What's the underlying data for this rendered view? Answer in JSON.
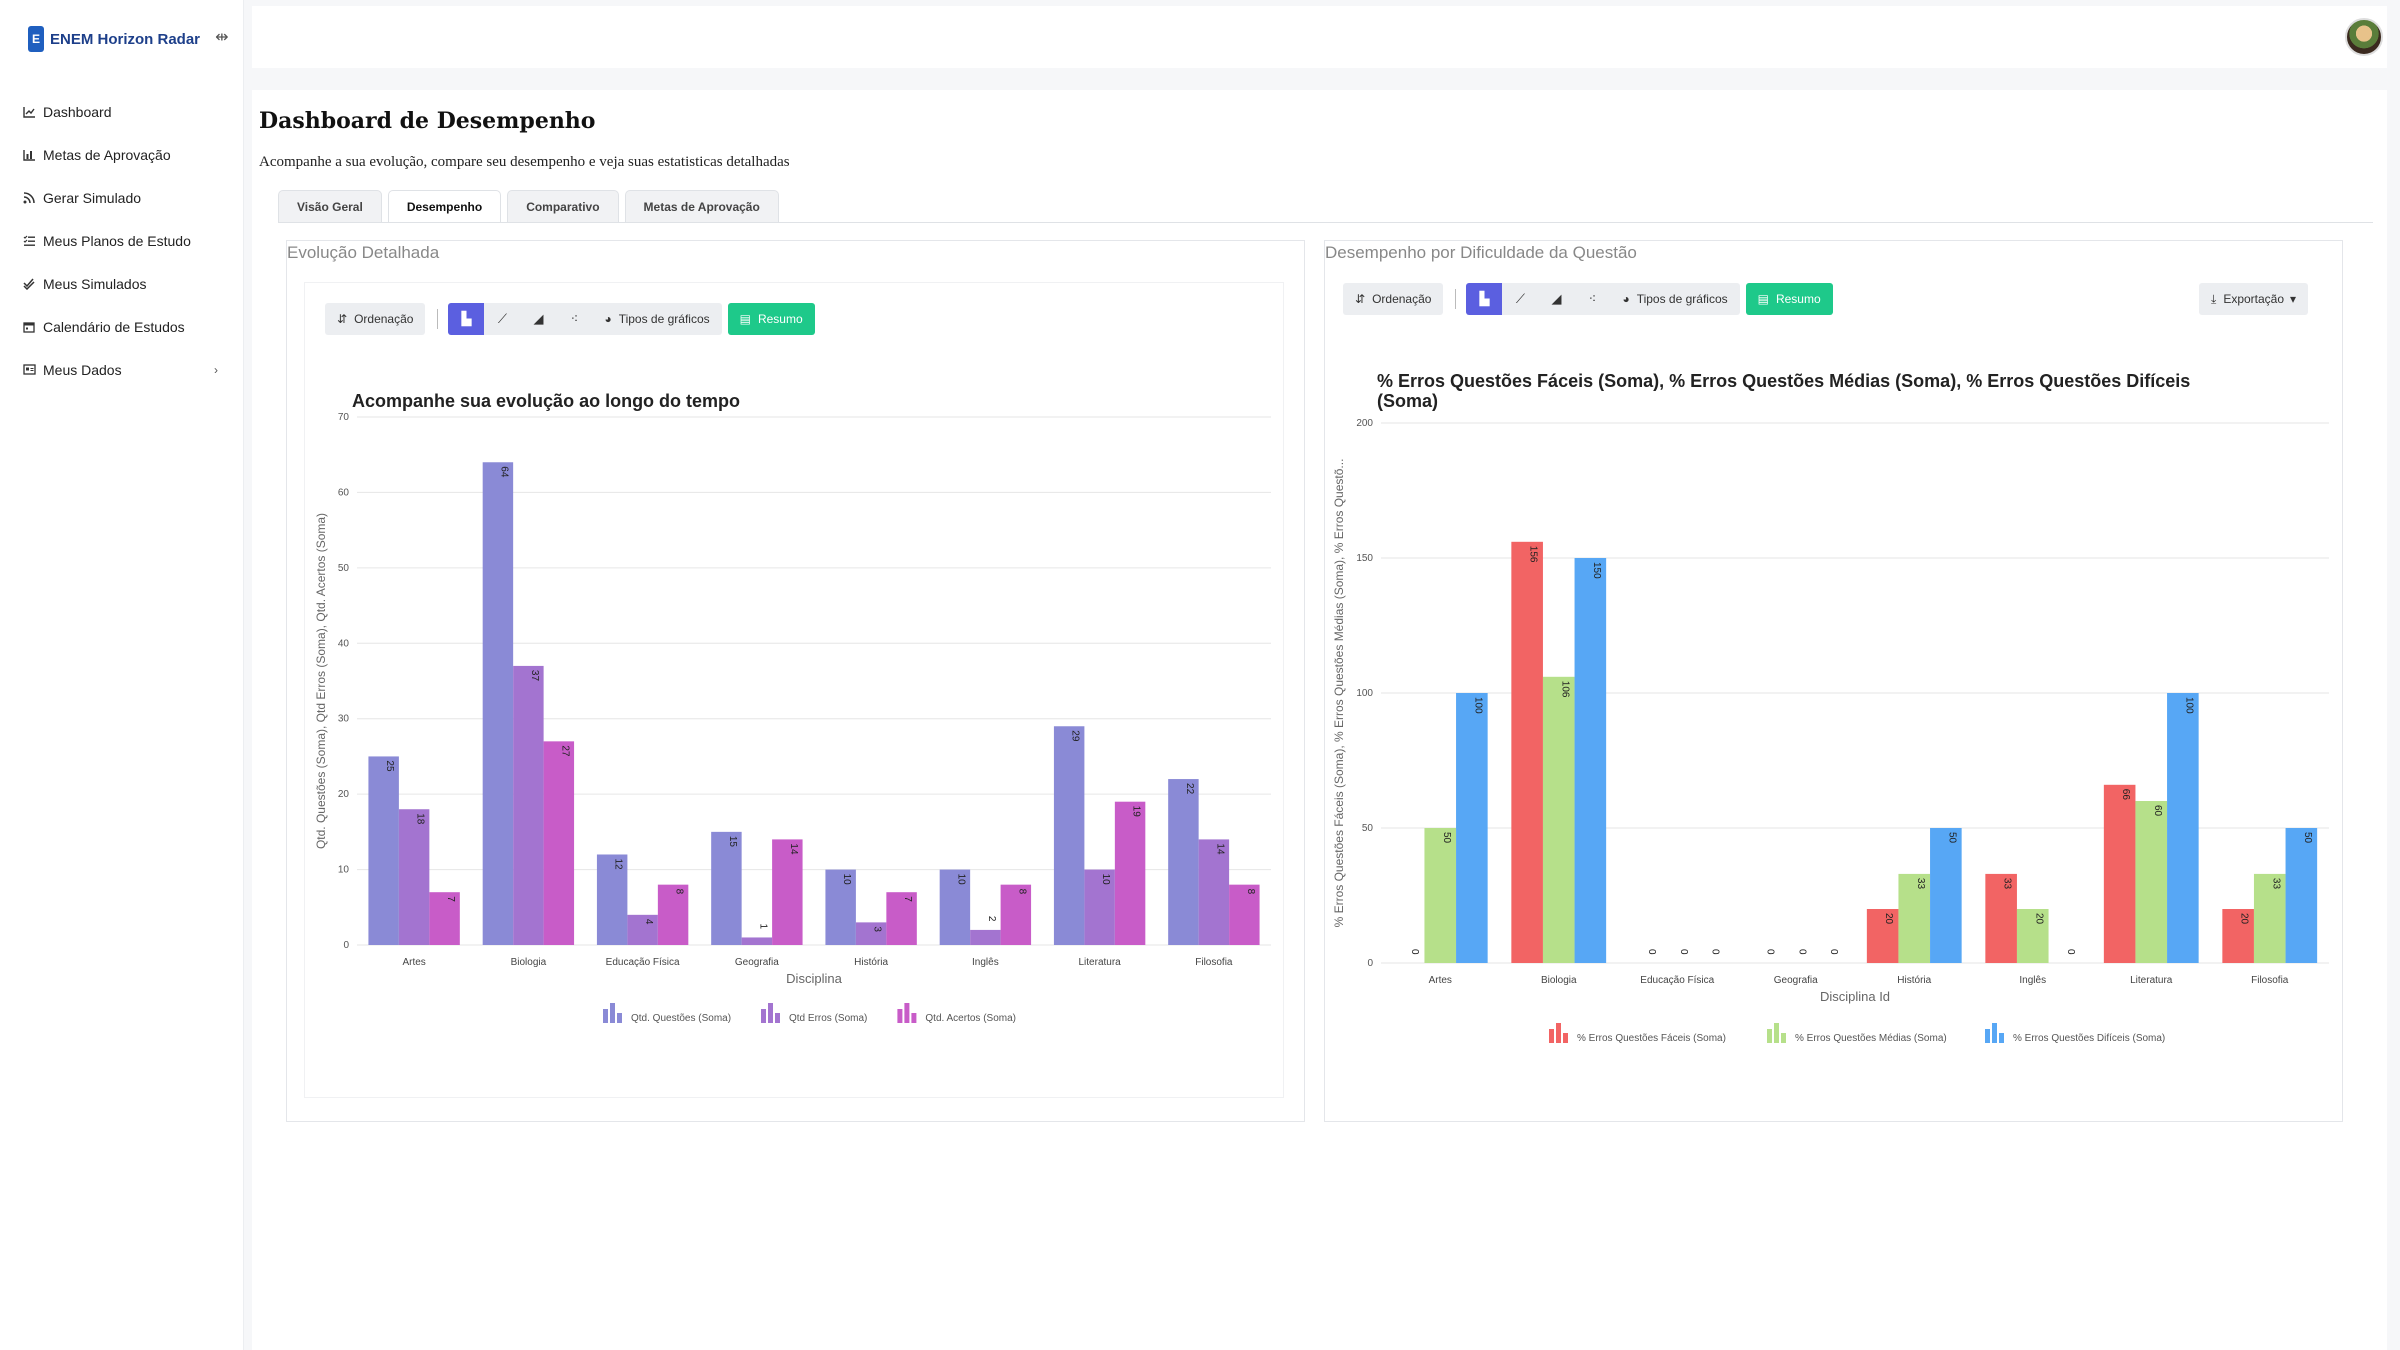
{
  "app": {
    "logo_letter": "E",
    "name": "ENEM Horizon Radar"
  },
  "sidebar": {
    "items": [
      {
        "label": "Dashboard",
        "icon": "chart-line-icon"
      },
      {
        "label": "Metas de Aprovação",
        "icon": "bar-chart-icon"
      },
      {
        "label": "Gerar Simulado",
        "icon": "rss-icon"
      },
      {
        "label": "Meus Planos de Estudo",
        "icon": "tasks-icon"
      },
      {
        "label": "Meus Simulados",
        "icon": "check-double-icon"
      },
      {
        "label": "Calendário de Estudos",
        "icon": "calendar-icon"
      },
      {
        "label": "Meus Dados",
        "icon": "id-card-icon",
        "has_submenu": true
      }
    ]
  },
  "page": {
    "title": "Dashboard de Desempenho",
    "subtitle": "Acompanhe a sua evolução, compare seu desempenho e veja suas estatisticas detalhadas"
  },
  "tabs": [
    {
      "label": "Visão Geral",
      "active": false
    },
    {
      "label": "Desempenho",
      "active": true
    },
    {
      "label": "Comparativo",
      "active": false
    },
    {
      "label": "Metas de Aprovação",
      "active": false
    }
  ],
  "toolbar": {
    "sort_label": "Ordenação",
    "chart_types_label": "Tipos de gráficos",
    "summary_label": "Resumo",
    "export_label": "Exportação"
  },
  "panels": {
    "left_title": "Evolução Detalhada",
    "right_title": "Desempenho por Dificuldade da Questão"
  },
  "colors": {
    "accent": "#5b5fe0",
    "success": "#1ec98a",
    "left_series": [
      "#8a8ad6",
      "#a374d0",
      "#c85cc8"
    ],
    "right_series": [
      "#f26464",
      "#b6e08a",
      "#57a7f5"
    ]
  },
  "chart_data": [
    {
      "type": "bar",
      "title": "Acompanhe sua evolução ao longo do tempo",
      "xlabel": "Disciplina",
      "ylabel": "Qtd. Questões (Soma), Qtd Erros (Soma), Qtd. Acertos (Soma)",
      "ylim": [
        0,
        70
      ],
      "yticks": [
        0,
        10,
        20,
        30,
        40,
        50,
        60,
        70
      ],
      "grid": true,
      "legend": "bottom-center",
      "categories": [
        "Artes",
        "Biologia",
        "Educação Física",
        "Geografia",
        "História",
        "Inglês",
        "Literatura",
        "Filosofia"
      ],
      "series": [
        {
          "name": "Qtd. Questões (Soma)",
          "values": [
            25,
            64,
            12,
            15,
            10,
            10,
            29,
            22
          ]
        },
        {
          "name": "Qtd Erros (Soma)",
          "values": [
            18,
            37,
            4,
            1,
            3,
            2,
            10,
            14
          ]
        },
        {
          "name": "Qtd. Acertos (Soma)",
          "values": [
            7,
            27,
            8,
            14,
            7,
            8,
            19,
            8
          ]
        }
      ]
    },
    {
      "type": "bar",
      "title": "% Erros Questões Fáceis (Soma), % Erros Questões Médias (Soma), % Erros Questões Difíceis (Soma)",
      "xlabel": "Disciplina Id",
      "ylabel": "% Erros Questões Fáceis (Soma), % Erros Questões Médias (Soma), % Erros Questõ...",
      "ylim": [
        0,
        200
      ],
      "yticks": [
        0,
        50,
        100,
        150,
        200
      ],
      "grid": true,
      "legend": "bottom-center",
      "categories": [
        "Artes",
        "Biologia",
        "Educação Física",
        "Geografia",
        "História",
        "Inglês",
        "Literatura",
        "Filosofia"
      ],
      "series": [
        {
          "name": "% Erros Questões Fáceis (Soma)",
          "values": [
            0,
            156,
            0,
            0,
            20,
            33,
            66,
            20
          ]
        },
        {
          "name": "% Erros Questões Médias (Soma)",
          "values": [
            50,
            106,
            0,
            0,
            33,
            20,
            60,
            33
          ]
        },
        {
          "name": "% Erros Questões Difíceis (Soma)",
          "values": [
            100,
            150,
            0,
            0,
            50,
            0,
            100,
            50
          ]
        }
      ]
    }
  ]
}
